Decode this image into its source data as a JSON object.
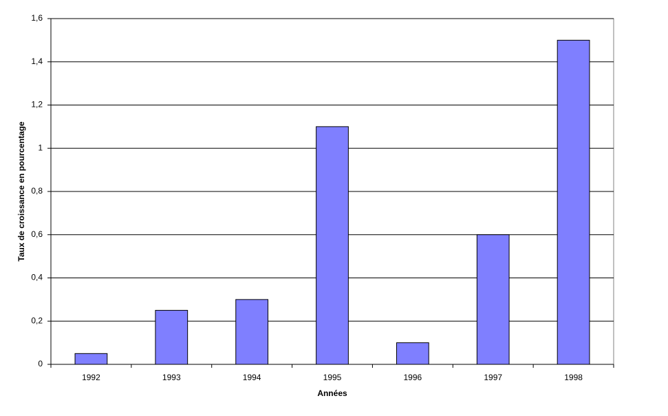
{
  "chart_data": {
    "type": "bar",
    "x_label": "Années",
    "y_label": "Taux de croissance en pourcentage",
    "categories": [
      "1992",
      "1993",
      "1994",
      "1995",
      "1996",
      "1997",
      "1998"
    ],
    "values": [
      0.05,
      0.25,
      0.3,
      1.1,
      0.1,
      0.6,
      1.5
    ],
    "color": "#7f7fff",
    "ylim": [
      0,
      1.6
    ],
    "yticks": [
      0,
      {
        "value": 0.2,
        "label": "0,2"
      },
      {
        "value": 0.4,
        "label": "0,4"
      },
      {
        "value": 0.6,
        "label": "0,6"
      },
      {
        "value": 0.8,
        "label": "0,8"
      },
      1,
      {
        "value": 1.2,
        "label": "1,2"
      },
      {
        "value": 1.4,
        "label": "1,4"
      },
      {
        "value": 1.6,
        "label": "1,6"
      }
    ],
    "grid": true
  }
}
